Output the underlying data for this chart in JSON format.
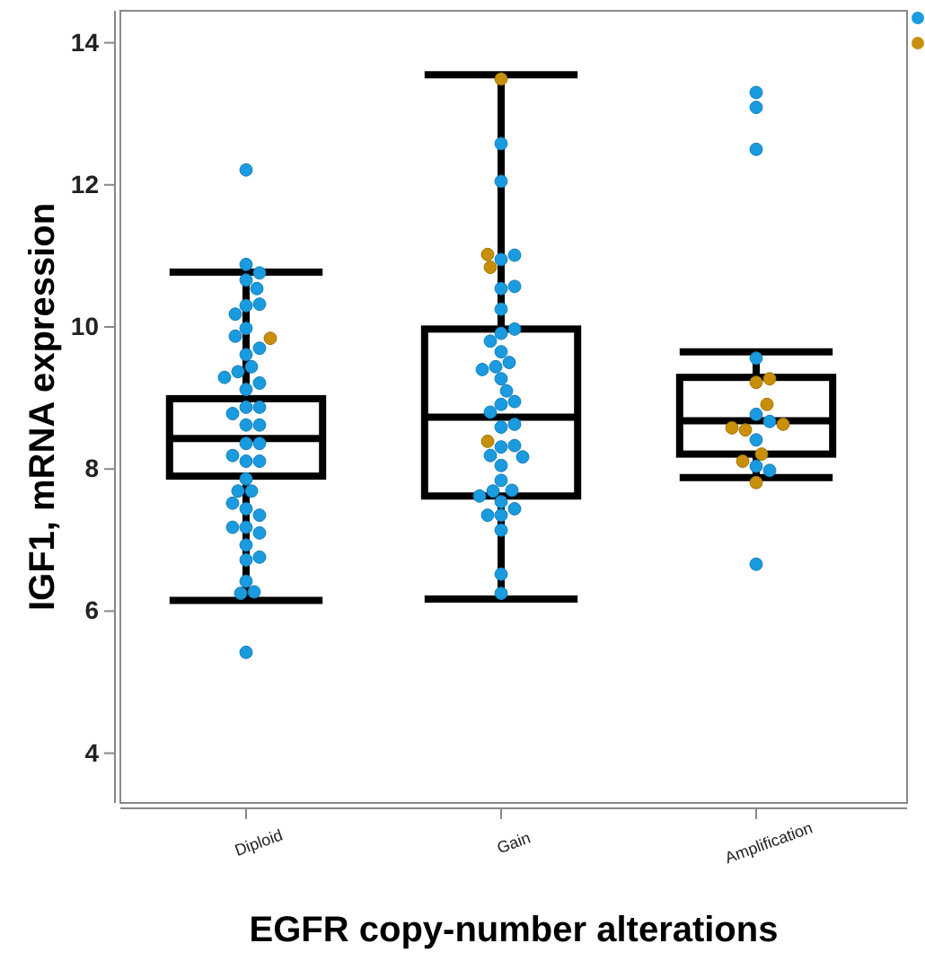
{
  "chart_data": {
    "type": "box",
    "xlabel": "EGFR copy-number alterations",
    "ylabel": "IGF1, mRNA expression",
    "categories": [
      "Diploid",
      "Gain",
      "Amplification"
    ],
    "ylim": [
      3.3,
      14.45
    ],
    "yticks": [
      4,
      6,
      8,
      10,
      12,
      14
    ],
    "grid": false,
    "marker": "circle",
    "boxes": [
      {
        "low": 6.15,
        "q1": 7.9,
        "median": 8.43,
        "q3": 8.99,
        "high": 10.77
      },
      {
        "low": 6.17,
        "q1": 7.62,
        "median": 8.73,
        "q3": 9.97,
        "high": 13.55
      },
      {
        "low": 7.88,
        "q1": 8.21,
        "median": 8.68,
        "q3": 9.29,
        "high": 9.65
      }
    ],
    "series": [
      {
        "type": "scatter",
        "color": "#1a9be0",
        "x": [
          "Diploid",
          "Diploid",
          "Diploid",
          "Diploid",
          "Diploid",
          "Diploid",
          "Diploid",
          "Diploid",
          "Diploid",
          "Diploid",
          "Diploid",
          "Diploid",
          "Diploid",
          "Diploid",
          "Diploid",
          "Diploid",
          "Diploid",
          "Diploid",
          "Diploid",
          "Diploid",
          "Diploid",
          "Diploid",
          "Diploid",
          "Diploid",
          "Diploid",
          "Diploid",
          "Diploid",
          "Diploid",
          "Diploid",
          "Diploid",
          "Diploid",
          "Diploid",
          "Diploid",
          "Diploid",
          "Diploid",
          "Diploid",
          "Diploid",
          "Diploid",
          "Diploid",
          "Diploid",
          "Diploid",
          "Diploid",
          "Diploid",
          "Gain",
          "Gain",
          "Gain",
          "Gain",
          "Gain",
          "Gain",
          "Gain",
          "Gain",
          "Gain",
          "Gain",
          "Gain",
          "Gain",
          "Gain",
          "Gain",
          "Gain",
          "Gain",
          "Gain",
          "Gain",
          "Gain",
          "Gain",
          "Gain",
          "Gain",
          "Gain",
          "Gain",
          "Gain",
          "Gain",
          "Gain",
          "Gain",
          "Gain",
          "Gain",
          "Gain",
          "Gain",
          "Gain",
          "Gain",
          "Gain",
          "Gain",
          "Gain",
          "Amplification",
          "Amplification",
          "Amplification",
          "Amplification",
          "Amplification",
          "Amplification",
          "Amplification",
          "Amplification",
          "Amplification",
          "Amplification"
        ],
        "values": [
          12.21,
          10.88,
          10.66,
          10.76,
          10.54,
          10.3,
          10.32,
          10.18,
          9.98,
          9.61,
          9.7,
          9.44,
          9.87,
          9.37,
          9.12,
          9.21,
          8.87,
          8.87,
          8.62,
          8.62,
          8.36,
          8.36,
          8.11,
          8.11,
          7.86,
          7.69,
          7.69,
          7.44,
          7.35,
          7.18,
          7.1,
          6.93,
          6.72,
          6.76,
          6.42,
          6.27,
          6.25,
          5.42,
          8.78,
          8.19,
          9.29,
          7.52,
          7.18,
          12.58,
          12.05,
          10.95,
          11.01,
          10.54,
          10.57,
          10.25,
          9.91,
          9.97,
          9.8,
          9.65,
          9.5,
          9.44,
          9.4,
          9.27,
          9.1,
          8.91,
          8.95,
          8.8,
          8.59,
          8.63,
          8.31,
          8.33,
          8.19,
          8.17,
          8.05,
          7.84,
          7.7,
          7.69,
          7.62,
          7.54,
          7.44,
          7.35,
          7.35,
          7.14,
          6.52,
          6.25,
          13.3,
          13.09,
          12.5,
          9.56,
          8.77,
          8.67,
          8.41,
          8.04,
          7.98,
          6.66
        ]
      },
      {
        "type": "scatter",
        "color": "#c8900a",
        "x": [
          "Diploid",
          "Gain",
          "Gain",
          "Gain",
          "Gain",
          "Amplification",
          "Amplification",
          "Amplification",
          "Amplification",
          "Amplification",
          "Amplification",
          "Amplification",
          "Amplification",
          "Amplification"
        ],
        "values": [
          9.84,
          13.49,
          11.02,
          10.84,
          8.39,
          9.22,
          9.27,
          8.91,
          8.55,
          8.58,
          8.63,
          8.21,
          8.11,
          7.81
        ]
      }
    ]
  }
}
